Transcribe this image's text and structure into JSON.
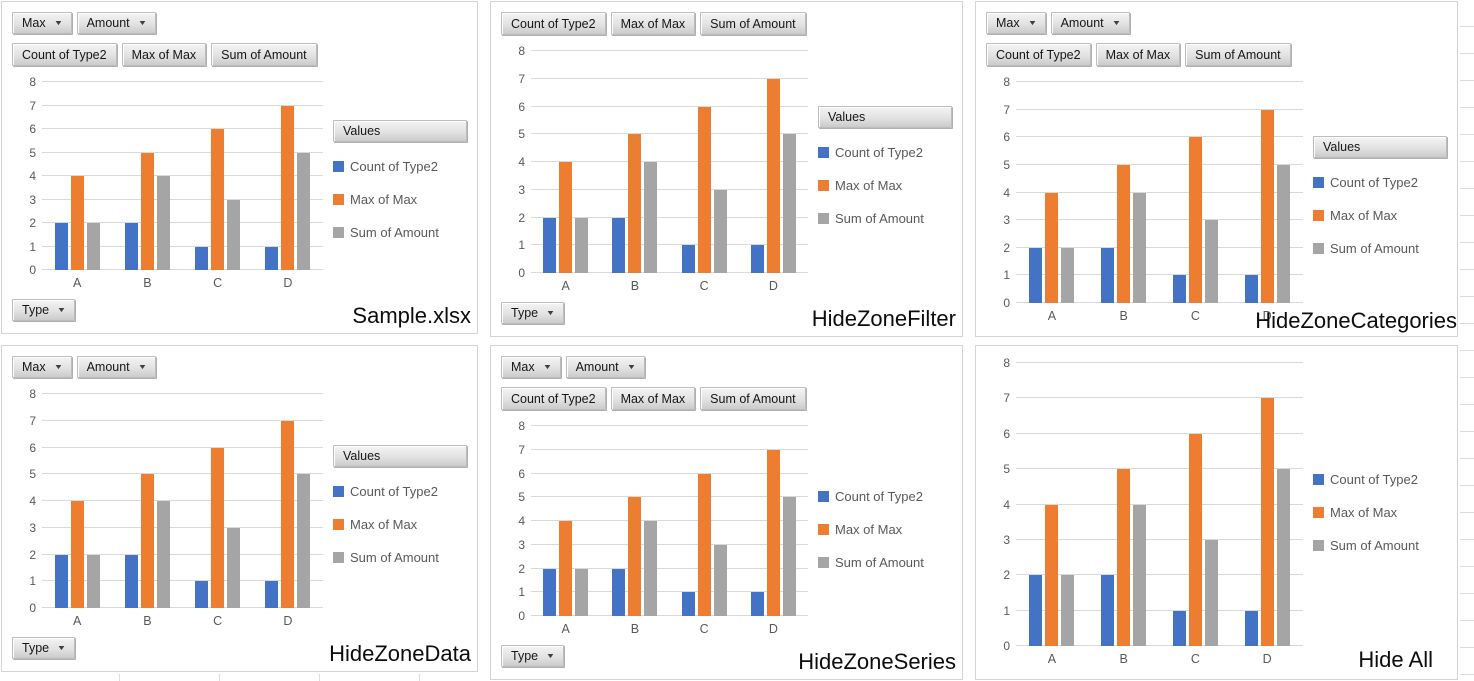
{
  "chart_data": {
    "type": "bar",
    "title": "",
    "xlabel": "",
    "ylabel": "",
    "categories": [
      "A",
      "B",
      "C",
      "D"
    ],
    "series": [
      {
        "name": "Count of Type2",
        "color": "#4472C4",
        "values": [
          2,
          2,
          1,
          1
        ]
      },
      {
        "name": "Max of Max",
        "color": "#ED7D31",
        "values": [
          4,
          5,
          6,
          7
        ]
      },
      {
        "name": "Sum of Amount",
        "color": "#A5A5A5",
        "values": [
          2,
          4,
          3,
          5
        ]
      }
    ],
    "ylim": [
      0,
      8
    ],
    "yticks": [
      0,
      1,
      2,
      3,
      4,
      5,
      6,
      7,
      8
    ],
    "grid": true,
    "legend_position": "right"
  },
  "pivot_controls": {
    "filter_buttons": [
      "Max",
      "Amount"
    ],
    "field_buttons": [
      "Count of Type2",
      "Max of Max",
      "Sum of Amount"
    ],
    "values_header_label": "Values",
    "axis_button_label": "Type"
  },
  "colors": {
    "gridline": "#D9D9D9",
    "axis_text": "#595959",
    "panel_border": "#D4D4D4",
    "label_text": "#0D0D0D"
  },
  "panels": [
    {
      "label": "Sample.xlsx",
      "show_filter_buttons": true,
      "show_field_buttons": true,
      "show_values_header": true,
      "show_axis_button": true
    },
    {
      "label": "HideZoneFilter",
      "show_filter_buttons": false,
      "show_field_buttons": true,
      "show_values_header": true,
      "show_axis_button": true
    },
    {
      "label": "HideZoneCategories",
      "show_filter_buttons": true,
      "show_field_buttons": true,
      "show_values_header": true,
      "show_axis_button": false
    },
    {
      "label": "HideZoneData",
      "show_filter_buttons": true,
      "show_field_buttons": false,
      "show_values_header": true,
      "show_axis_button": true
    },
    {
      "label": "HideZoneSeries",
      "show_filter_buttons": true,
      "show_field_buttons": true,
      "show_values_header": false,
      "show_axis_button": true
    },
    {
      "label": "Hide All",
      "show_filter_buttons": false,
      "show_field_buttons": false,
      "show_values_header": false,
      "show_axis_button": false
    }
  ]
}
